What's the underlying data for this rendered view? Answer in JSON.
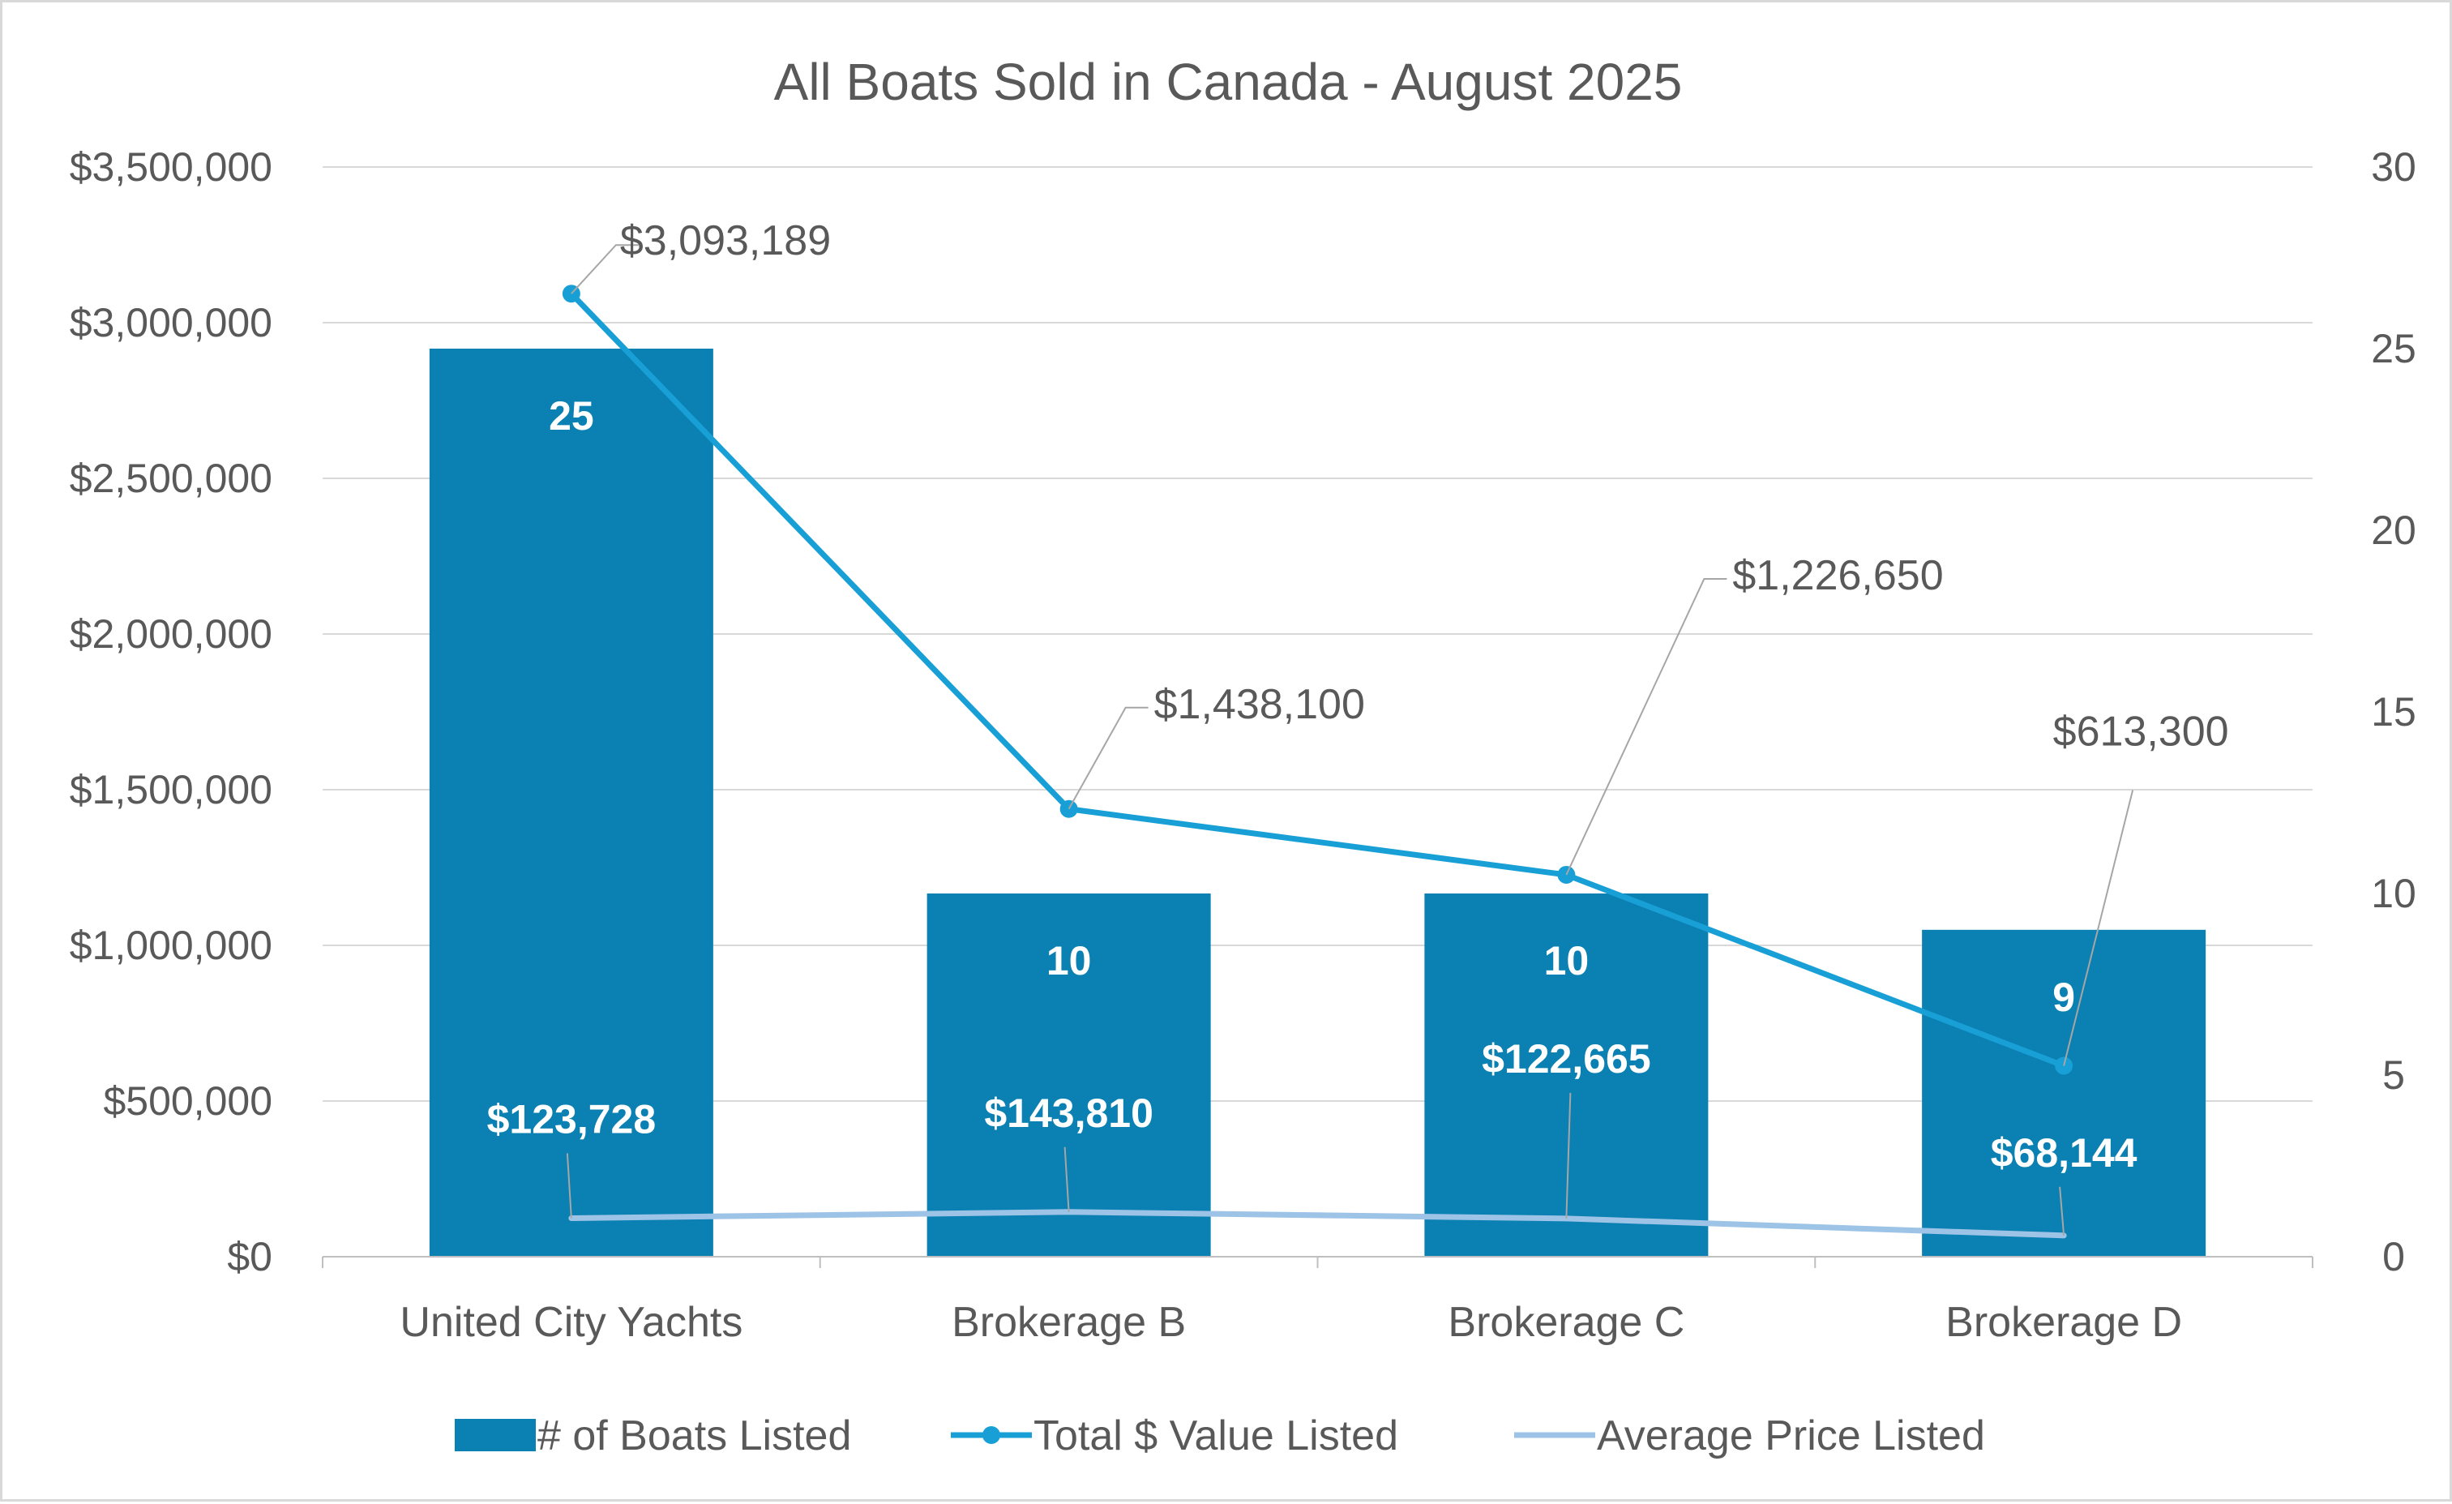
{
  "chart_data": {
    "type": "bar",
    "title": "All Boats Sold in Canada - August 2025",
    "categories": [
      "United City Yachts",
      "Brokerage B",
      "Brokerage C",
      "Brokerage D"
    ],
    "series": [
      {
        "name": "# of Boats Listed",
        "kind": "bar",
        "axis": "right",
        "color": "#0b80b2",
        "values": [
          25,
          10,
          10,
          9
        ],
        "value_labels": [
          "25",
          "10",
          "10",
          "9"
        ]
      },
      {
        "name": "Total $ Value Listed",
        "kind": "line",
        "axis": "left",
        "color": "#18a0d6",
        "markers": true,
        "values": [
          3093189,
          1438100,
          1226650,
          613300
        ],
        "value_labels": [
          "$3,093,189",
          "$1,438,100",
          "$1,226,650",
          "$613,300"
        ]
      },
      {
        "name": "Average Price Listed",
        "kind": "line",
        "axis": "left",
        "color": "#9dc3e6",
        "markers": false,
        "values": [
          123728,
          143810,
          122665,
          68144
        ],
        "value_labels": [
          "$123,728",
          "$143,810",
          "$122,665",
          "$68,144"
        ]
      }
    ],
    "y_left": {
      "ylim": [
        0,
        3500000
      ],
      "tick_labels": [
        "$0",
        "$500,000",
        "$1,000,000",
        "$1,500,000",
        "$2,000,000",
        "$2,500,000",
        "$3,000,000",
        "$3,500,000"
      ]
    },
    "y_right": {
      "ylim": [
        0,
        30
      ],
      "tick_labels": [
        "0",
        "5",
        "10",
        "15",
        "20",
        "25",
        "30"
      ]
    },
    "grid": true,
    "legend_position": "bottom"
  }
}
